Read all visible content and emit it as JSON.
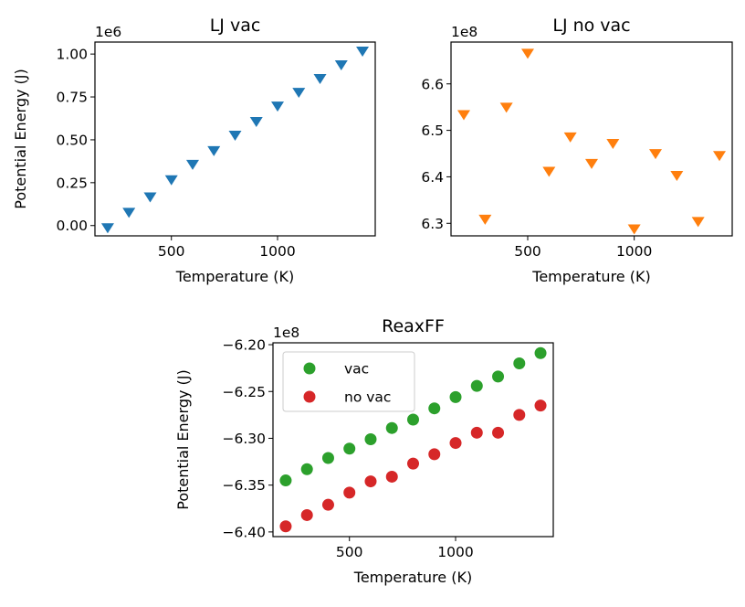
{
  "chart_data": [
    {
      "type": "scatter",
      "title": "LJ vac",
      "xlabel": "Temperature (K)",
      "ylabel": "Potential Energy (J)",
      "offset_label": "1e6",
      "xlim": [
        140,
        1460
      ],
      "ylim": [
        -0.06,
        1.07
      ],
      "xticks": [
        500,
        1000
      ],
      "xtick_labels": [
        "500",
        "1000"
      ],
      "yticks": [
        0.0,
        0.25,
        0.5,
        0.75,
        1.0
      ],
      "ytick_labels": [
        "0.00",
        "0.25",
        "0.50",
        "0.75",
        "1.00"
      ],
      "grid": false,
      "series": [
        {
          "marker": "triangle-down",
          "color": "#1f77b4",
          "x": [
            200,
            300,
            400,
            500,
            600,
            700,
            800,
            900,
            1000,
            1100,
            1200,
            1300,
            1400
          ],
          "y": [
            -0.01,
            0.08,
            0.17,
            0.27,
            0.36,
            0.44,
            0.53,
            0.61,
            0.7,
            0.78,
            0.86,
            0.94,
            1.02
          ]
        }
      ]
    },
    {
      "type": "scatter",
      "title": "LJ no vac",
      "xlabel": "Temperature (K)",
      "ylabel": "",
      "offset_label": "1e8",
      "xlim": [
        140,
        1460
      ],
      "ylim": [
        6.273,
        6.69
      ],
      "xticks": [
        500,
        1000
      ],
      "xtick_labels": [
        "500",
        "1000"
      ],
      "yticks": [
        6.3,
        6.4,
        6.5,
        6.6
      ],
      "ytick_labels": [
        "6.3",
        "6.4",
        "6.5",
        "6.6"
      ],
      "grid": false,
      "series": [
        {
          "marker": "triangle-down",
          "color": "#ff7f0e",
          "x": [
            200,
            300,
            400,
            500,
            600,
            700,
            800,
            900,
            1000,
            1100,
            1200,
            1300,
            1400
          ],
          "y": [
            6.535,
            6.31,
            6.551,
            6.667,
            6.413,
            6.487,
            6.43,
            6.473,
            6.289,
            6.451,
            6.404,
            6.305,
            6.447
          ]
        }
      ]
    },
    {
      "type": "scatter",
      "title": "ReaxFF",
      "xlabel": "Temperature (K)",
      "ylabel": "Potential Energy (J)",
      "offset_label": "1e8",
      "xlim": [
        140,
        1460
      ],
      "ylim": [
        -6.405,
        -6.198
      ],
      "xticks": [
        500,
        1000
      ],
      "xtick_labels": [
        "500",
        "1000"
      ],
      "yticks": [
        -6.4,
        -6.35,
        -6.3,
        -6.25,
        -6.2
      ],
      "ytick_labels": [
        "−6.40",
        "−6.35",
        "−6.30",
        "−6.25",
        "−6.20"
      ],
      "grid": false,
      "legend": "top-left",
      "series": [
        {
          "name": "vac",
          "marker": "circle",
          "color": "#2ca02c",
          "x": [
            200,
            300,
            400,
            500,
            600,
            700,
            800,
            900,
            1000,
            1100,
            1200,
            1300,
            1400
          ],
          "y": [
            -6.345,
            -6.333,
            -6.321,
            -6.311,
            -6.301,
            -6.289,
            -6.28,
            -6.268,
            -6.256,
            -6.244,
            -6.234,
            -6.22,
            -6.209
          ]
        },
        {
          "name": "no vac",
          "marker": "circle",
          "color": "#d62728",
          "x": [
            200,
            300,
            400,
            500,
            600,
            700,
            800,
            900,
            1000,
            1100,
            1200,
            1300,
            1400
          ],
          "y": [
            -6.394,
            -6.382,
            -6.371,
            -6.358,
            -6.346,
            -6.341,
            -6.327,
            -6.317,
            -6.305,
            -6.294,
            -6.294,
            -6.275,
            -6.265
          ]
        }
      ]
    }
  ]
}
